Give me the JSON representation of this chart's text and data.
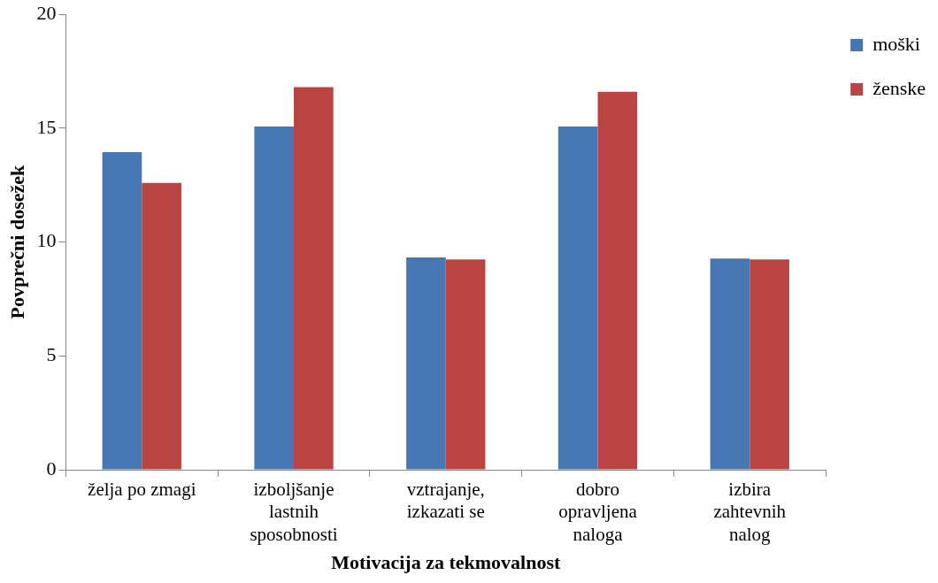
{
  "chart_data": {
    "type": "bar",
    "xlabel": "Motivacija za tekmovalnost",
    "ylabel": "Povprečni dosežek",
    "categories": [
      "želja po zmagi",
      "izboljšanje\nlastnih\nsposobnosti",
      "vztrajanje,\nizkazati se",
      "dobro\nopravljena\nnaloga",
      "izbira\nzahtevnih\nnalog"
    ],
    "series": [
      {
        "name": "moški",
        "color": "#4677b3",
        "values": [
          13.95,
          15.07,
          9.32,
          15.07,
          9.28
        ]
      },
      {
        "name": "ženske",
        "color": "#b94442",
        "values": [
          12.6,
          16.8,
          9.24,
          16.6,
          9.24
        ]
      }
    ],
    "ylim": [
      0,
      20
    ],
    "yticks": [
      0,
      5,
      10,
      15,
      20
    ],
    "legend": "top right"
  }
}
